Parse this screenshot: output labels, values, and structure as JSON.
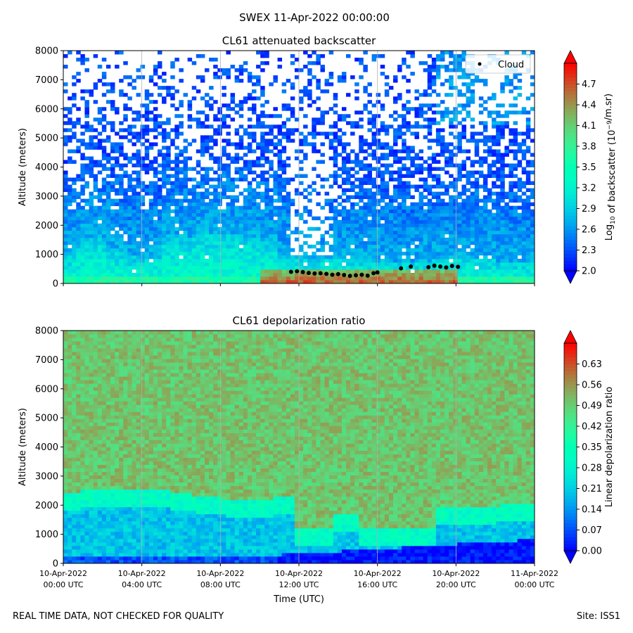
{
  "figure": {
    "suptitle": "SWEX 11-Apr-2022 00:00:00",
    "footer_left": "REAL TIME DATA, NOT CHECKED FOR QUALITY",
    "footer_right": "Site: ISS1"
  },
  "chart_data": [
    {
      "type": "heatmap",
      "title": "CL61 attenuated backscatter",
      "ylabel": "Altitude (meters)",
      "xlabel": "",
      "ylim": [
        0,
        8000
      ],
      "yticks": [
        0,
        1000,
        2000,
        3000,
        4000,
        5000,
        6000,
        7000,
        8000
      ],
      "xlim_hours": [
        0,
        24
      ],
      "colormap": "rainbow",
      "colorbar": {
        "label_base": "Log",
        "label_sub": "10",
        "label_mid": " of backscatter (10",
        "label_sup": "−9",
        "label_end": "/m.sr)",
        "range": [
          2.0,
          5.0
        ],
        "ticks": [
          "2.0",
          "2.3",
          "2.6",
          "2.9",
          "3.2",
          "3.5",
          "3.8",
          "4.1",
          "4.4",
          "4.7"
        ],
        "extend": "both"
      },
      "legend": {
        "label": "Cloud",
        "placement": "top-right"
      },
      "cloud_base": [
        {
          "t": 11.6,
          "alt": 400
        },
        {
          "t": 11.9,
          "alt": 420
        },
        {
          "t": 12.2,
          "alt": 390
        },
        {
          "t": 12.5,
          "alt": 360
        },
        {
          "t": 12.8,
          "alt": 340
        },
        {
          "t": 13.1,
          "alt": 350
        },
        {
          "t": 13.4,
          "alt": 330
        },
        {
          "t": 13.7,
          "alt": 300
        },
        {
          "t": 14.0,
          "alt": 320
        },
        {
          "t": 14.3,
          "alt": 290
        },
        {
          "t": 14.6,
          "alt": 260
        },
        {
          "t": 14.9,
          "alt": 280
        },
        {
          "t": 15.2,
          "alt": 300
        },
        {
          "t": 15.5,
          "alt": 270
        },
        {
          "t": 15.8,
          "alt": 350
        },
        {
          "t": 16.0,
          "alt": 380
        },
        {
          "t": 17.2,
          "alt": 520
        },
        {
          "t": 17.7,
          "alt": 580
        },
        {
          "t": 18.6,
          "alt": 560
        },
        {
          "t": 18.9,
          "alt": 610
        },
        {
          "t": 19.2,
          "alt": 580
        },
        {
          "t": 19.5,
          "alt": 550
        },
        {
          "t": 19.8,
          "alt": 600
        },
        {
          "t": 20.1,
          "alt": 570
        }
      ]
    },
    {
      "type": "heatmap",
      "title": "CL61 depolarization ratio",
      "ylabel": "Altitude (meters)",
      "xlabel": "Time (UTC)",
      "ylim": [
        0,
        8000
      ],
      "yticks": [
        0,
        1000,
        2000,
        3000,
        4000,
        5000,
        6000,
        7000,
        8000
      ],
      "xlim_hours": [
        0,
        24
      ],
      "colormap": "rainbow",
      "colorbar": {
        "label": "Linear depolarization ratio",
        "range": [
          0.0,
          0.7
        ],
        "ticks": [
          "0.00",
          "0.07",
          "0.14",
          "0.21",
          "0.28",
          "0.35",
          "0.42",
          "0.49",
          "0.56",
          "0.63"
        ],
        "extend": "both"
      },
      "xticks": [
        {
          "h": 0,
          "date": "10-Apr-2022",
          "time": "00:00 UTC"
        },
        {
          "h": 4,
          "date": "10-Apr-2022",
          "time": "04:00 UTC"
        },
        {
          "h": 8,
          "date": "10-Apr-2022",
          "time": "08:00 UTC"
        },
        {
          "h": 12,
          "date": "10-Apr-2022",
          "time": "12:00 UTC"
        },
        {
          "h": 16,
          "date": "10-Apr-2022",
          "time": "16:00 UTC"
        },
        {
          "h": 20,
          "date": "10-Apr-2022",
          "time": "20:00 UTC"
        },
        {
          "h": 24,
          "date": "11-Apr-2022",
          "time": "00:00 UTC"
        }
      ]
    }
  ]
}
